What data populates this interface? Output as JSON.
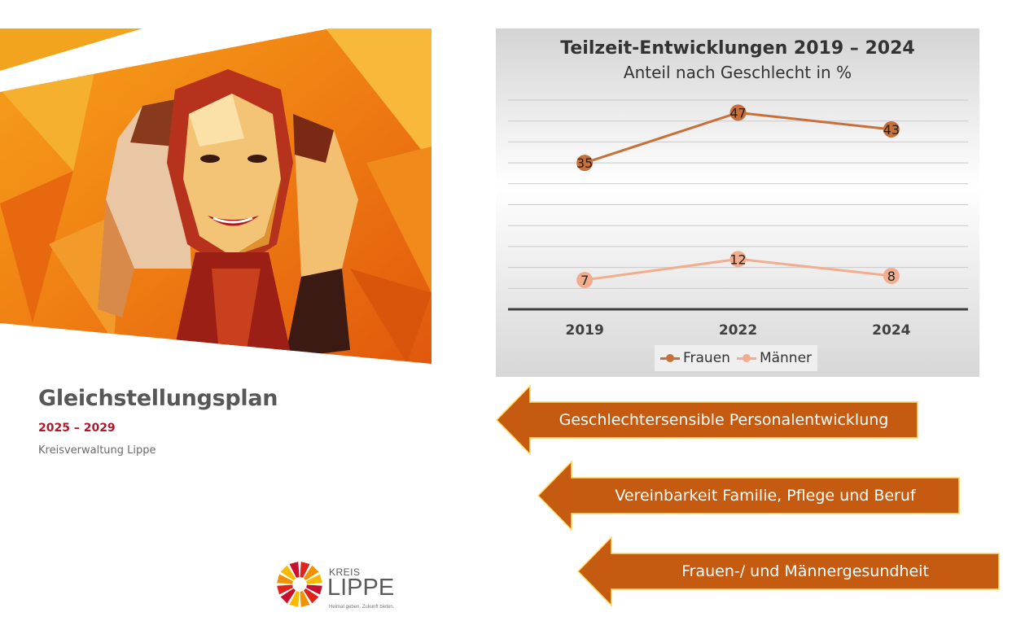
{
  "cover": {
    "title": "Gleichstellungsplan",
    "years": "2025 – 2029",
    "organisation": "Kreisverwaltung Lippe",
    "artwork_icon": "polygon-women-faces-illustration"
  },
  "logo": {
    "kreis": "KREIS",
    "lippe": "LIPPE",
    "slogan": "Heimat geben. Zukunft bieten.",
    "colors": [
      "#e2231a",
      "#f39200",
      "#fbba00",
      "#c8102e"
    ]
  },
  "chart_data": {
    "type": "line",
    "title": "Teilzeit-Entwicklungen 2019 – 2024",
    "subtitle": "Anteil nach Geschlecht in %",
    "categories": [
      "2019",
      "2022",
      "2024"
    ],
    "series": [
      {
        "name": "Frauen",
        "values": [
          35,
          47,
          43
        ],
        "labels": [
          "35",
          "47",
          "43"
        ],
        "color": "#c8703a"
      },
      {
        "name": "Männer",
        "values": [
          7,
          12,
          8
        ],
        "labels": [
          "7",
          "12",
          "8"
        ],
        "color": "#f2ad8f"
      }
    ],
    "ylim": [
      0,
      50
    ],
    "grid": true,
    "legend": "bottom-center"
  },
  "arrows": {
    "fill_color": "#c55a11",
    "border_color": "#ffd966",
    "items": [
      {
        "label": "Geschlechtersensible Personalentwicklung"
      },
      {
        "label": "Vereinbarkeit Familie, Pflege und Beruf"
      },
      {
        "label": "Frauen-/ und Männergesundheit"
      }
    ]
  }
}
